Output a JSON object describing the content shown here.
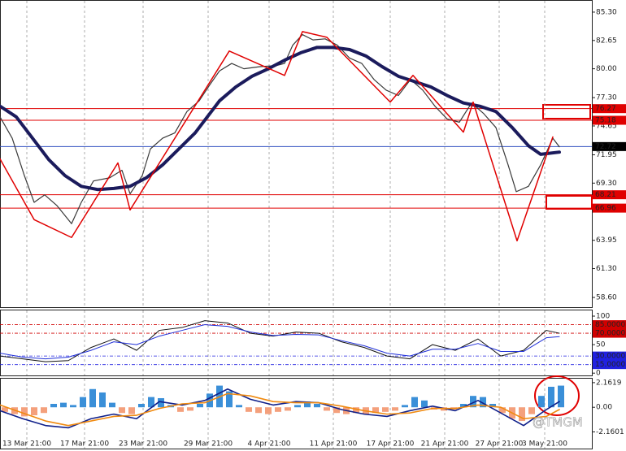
{
  "chart_data": [
    {
      "type": "line",
      "xlim": [
        0,
        182
      ],
      "xticks": [
        {
          "value": 8.25,
          "label": "13 Mar 21:00"
        },
        {
          "value": 26,
          "label": "17 Mar 21:00"
        },
        {
          "value": 44,
          "label": "23 Mar 21:00"
        },
        {
          "value": 64,
          "label": "29 Mar 21:00"
        },
        {
          "value": 82.75,
          "label": "4 Apr 21:00"
        },
        {
          "value": 102.5,
          "label": "11 Apr 21:00"
        },
        {
          "value": 120,
          "label": "17 Apr 21:00"
        },
        {
          "value": 136.75,
          "label": "21 Apr 21:00"
        },
        {
          "value": 153.5,
          "label": "27 Apr 21:00"
        },
        {
          "value": 167.5,
          "label": "3 May 21:00"
        }
      ],
      "ylim": [
        57.69,
        86.36
      ],
      "yticks": [
        {
          "value": 85.3,
          "label": "85.30"
        },
        {
          "value": 82.65,
          "label": "82.65"
        },
        {
          "value": 80,
          "label": "80.00"
        },
        {
          "value": 77.3,
          "label": "77.30"
        },
        {
          "value": 74.65,
          "label": "74.65"
        },
        {
          "value": 71.95,
          "label": "71.95"
        },
        {
          "value": 69.3,
          "label": "69.30"
        },
        {
          "value": 63.95,
          "label": "63.95"
        },
        {
          "value": 61.3,
          "label": "61.30"
        },
        {
          "value": 58.6,
          "label": "58.60"
        }
      ],
      "levels": [
        {
          "value": 76.27,
          "color": "#e00000"
        },
        {
          "value": 75.18,
          "color": "#e00000"
        },
        {
          "value": 72.72,
          "color": "#3050c0",
          "label_color": "#000000"
        },
        {
          "value": 68.21,
          "color": "#e00000"
        },
        {
          "value": 66.96,
          "color": "#e00000"
        }
      ],
      "series": [
        {
          "color": "#3a3a3a",
          "width": 1.2,
          "x": [
            0,
            3.75,
            7.5,
            10.5,
            13.75,
            17.5,
            22,
            25,
            28.75,
            33.75,
            37.5,
            40,
            43.75,
            46.25,
            50,
            53.75,
            57.5,
            61.25,
            64.5,
            67.5,
            71.25,
            75,
            80,
            85,
            87.5,
            90,
            93,
            96.25,
            100,
            103.75,
            107.5,
            111.25,
            115,
            118.75,
            122.5,
            126.25,
            130,
            133.75,
            137.5,
            141.25,
            145,
            148.75,
            152.5,
            156.25,
            158.75,
            162.5,
            166.25,
            170,
            172
          ],
          "values": [
            75.5,
            73.5,
            70,
            67.5,
            68.2,
            67.2,
            65.5,
            67.5,
            69.5,
            69.8,
            70.5,
            68.3,
            70,
            72.5,
            73.5,
            74,
            76,
            77,
            78.5,
            79.8,
            80.5,
            80,
            80.2,
            80.3,
            80.5,
            82.2,
            83.2,
            82.7,
            82.8,
            82.2,
            81,
            80.5,
            79,
            78,
            77.5,
            79,
            78,
            76.5,
            75.3,
            75,
            76.8,
            75.8,
            74.5,
            71,
            68.5,
            69,
            71,
            73.5,
            72.7
          ]
        },
        {
          "color": "#1b1b5c",
          "width": 4,
          "x": [
            0,
            5,
            10,
            15,
            20,
            25,
            30,
            35,
            40,
            45,
            50,
            55,
            60,
            63.75,
            67.5,
            72.5,
            77.5,
            82.5,
            87.5,
            92.5,
            97.5,
            102.5,
            107.5,
            112.5,
            117.5,
            122.5,
            127.5,
            132.5,
            137.5,
            142.5,
            147.5,
            152.5,
            157.5,
            162.5,
            166.25,
            172
          ],
          "values": [
            76.5,
            75.5,
            73.5,
            71.5,
            70,
            69,
            68.7,
            68.8,
            69,
            69.8,
            71,
            72.5,
            74,
            75.5,
            77,
            78.3,
            79.3,
            80,
            80.8,
            81.5,
            82,
            82,
            81.8,
            81.2,
            80.2,
            79.3,
            78.8,
            78.3,
            77.5,
            76.8,
            76.5,
            76,
            74.5,
            72.8,
            72,
            72.2
          ]
        },
        {
          "color": "#e00000",
          "width": 1.5,
          "x": [
            0,
            10.5,
            22,
            36.25,
            40,
            70.5,
            87.5,
            93,
            100.5,
            120,
            127,
            142.5,
            145.5,
            159,
            170
          ],
          "values": [
            71.57,
            65.88,
            64.21,
            71.19,
            66.79,
            81.66,
            79.38,
            83.48,
            82.95,
            76.88,
            79.38,
            74.07,
            76.88,
            63.9,
            73.62
          ]
        }
      ]
    },
    {
      "type": "line",
      "xlim": [
        0,
        182
      ],
      "ylim": [
        -4,
        110
      ],
      "yticks": [
        100,
        50,
        0
      ],
      "levels": [
        {
          "value": 85,
          "label": "85.0000",
          "color": "#d00000"
        },
        {
          "value": 70,
          "label": "70.0000",
          "color": "#d00000"
        },
        {
          "value": 30,
          "label": "30.0000",
          "color": "#2020e0"
        },
        {
          "value": 15,
          "label": "15.0000",
          "color": "#2020e0"
        }
      ],
      "series": [
        {
          "color": "#111111",
          "width": 1,
          "x": [
            0,
            7,
            14,
            21,
            28,
            35,
            42,
            49,
            56,
            63,
            70,
            77,
            84,
            91,
            98,
            105,
            112,
            119,
            126,
            133,
            140,
            147,
            154,
            161,
            168,
            172
          ],
          "values": [
            30,
            25,
            20,
            22,
            45,
            60,
            40,
            75,
            80,
            92,
            88,
            70,
            65,
            72,
            70,
            55,
            45,
            30,
            25,
            50,
            40,
            60,
            30,
            40,
            75,
            70
          ]
        },
        {
          "color": "#2030d8",
          "width": 1,
          "x": [
            0,
            7,
            14,
            21,
            28,
            35,
            42,
            49,
            56,
            63,
            70,
            77,
            84,
            91,
            98,
            105,
            112,
            119,
            126,
            133,
            140,
            147,
            154,
            161,
            168,
            172
          ],
          "values": [
            35,
            28,
            25,
            28,
            40,
            55,
            50,
            65,
            75,
            85,
            82,
            72,
            66,
            68,
            67,
            57,
            48,
            35,
            30,
            42,
            42,
            52,
            38,
            38,
            62,
            64
          ]
        }
      ]
    },
    {
      "type": "combo",
      "xlim": [
        0,
        182
      ],
      "ylim": [
        -3.62,
        2.51
      ],
      "yticks": [
        2.1619,
        {
          "value": 0,
          "label": "0.00"
        },
        -2.1601
      ],
      "histogram": {
        "colors": {
          "positive": "#3a8fd8",
          "negative": "#f4a07c"
        },
        "x": [
          1.5,
          4.5,
          7.5,
          10.5,
          13.5,
          16.5,
          19.5,
          22.5,
          25.5,
          28.5,
          31.5,
          34.5,
          37.5,
          40.5,
          43.5,
          46.5,
          49.5,
          52.5,
          55.5,
          58.5,
          61.5,
          64.5,
          67.5,
          70.5,
          73.5,
          76.5,
          79.5,
          82.5,
          85.5,
          88.5,
          91.5,
          94.5,
          97.5,
          100.5,
          103.5,
          106.5,
          109.5,
          112.5,
          115.5,
          118.5,
          121.5,
          124.5,
          127.5,
          130.5,
          133.5,
          136.5,
          139.5,
          142.5,
          145.5,
          148.5,
          151.5,
          154.5,
          157.5,
          160.5,
          163.5,
          166.5,
          169.5,
          172.5
        ],
        "values": [
          -0.4,
          -0.6,
          -0.8,
          -0.7,
          -0.5,
          0.3,
          0.4,
          0.2,
          0.9,
          1.6,
          1.3,
          0.4,
          -0.5,
          -0.6,
          0.3,
          0.9,
          0.8,
          0.2,
          -0.4,
          -0.3,
          0.3,
          1.2,
          1.9,
          1.4,
          0.2,
          -0.4,
          -0.5,
          -0.6,
          -0.4,
          -0.3,
          0.2,
          0.5,
          0.3,
          -0.3,
          -0.5,
          -0.6,
          -0.5,
          -0.6,
          -0.5,
          -0.4,
          -0.3,
          0.2,
          0.9,
          0.6,
          -0.2,
          -0.3,
          -0.2,
          0.3,
          1.0,
          0.9,
          0.3,
          -0.5,
          -1.0,
          -1.2,
          -0.6,
          1.0,
          1.8,
          1.9
        ]
      },
      "series": [
        {
          "color": "#10208a",
          "width": 1.6,
          "x": [
            0,
            7,
            14,
            21,
            28,
            35,
            42,
            49,
            56,
            63,
            70,
            77,
            84,
            91,
            98,
            105,
            112,
            119,
            126,
            133,
            140,
            147,
            154,
            161,
            168,
            172
          ],
          "values": [
            -0.3,
            -1.0,
            -1.6,
            -1.8,
            -1.0,
            -0.6,
            -1.0,
            0.5,
            0.2,
            0.6,
            1.6,
            0.7,
            0.2,
            0.5,
            0.4,
            -0.2,
            -0.6,
            -0.8,
            -0.3,
            0.1,
            -0.3,
            0.6,
            -0.5,
            -1.6,
            -0.2,
            0.5
          ]
        },
        {
          "color": "#f08a10",
          "width": 1.6,
          "x": [
            0,
            7,
            14,
            21,
            28,
            35,
            42,
            49,
            56,
            63,
            70,
            77,
            84,
            91,
            98,
            105,
            112,
            119,
            126,
            133,
            140,
            147,
            154,
            161,
            168,
            172
          ],
          "values": [
            0.2,
            -0.5,
            -1.2,
            -1.6,
            -1.2,
            -0.8,
            -0.7,
            -0.1,
            0.3,
            0.4,
            1.2,
            1.0,
            0.5,
            0.4,
            0.4,
            0.1,
            -0.3,
            -0.6,
            -0.5,
            -0.1,
            -0.1,
            0.2,
            0.0,
            -1.0,
            -0.8,
            -0.2
          ]
        }
      ]
    }
  ],
  "watermark": "@TMGM"
}
